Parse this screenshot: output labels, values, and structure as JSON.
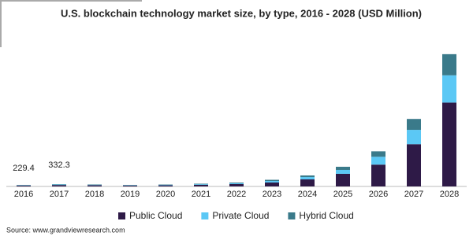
{
  "chart_data": {
    "type": "stacked_bar",
    "title": "U.S. blockchain technology market size, by type, 2016 - 2028 (USD Million)",
    "categories": [
      "2016",
      "2017",
      "2018",
      "2019",
      "2020",
      "2021",
      "2022",
      "2023",
      "2024",
      "2025",
      "2026",
      "2027",
      "2028"
    ],
    "series": [
      {
        "name": "Public Cloud",
        "color": "#2e1a47",
        "values": [
          145,
          210,
          190,
          140,
          170,
          230,
          345,
          575,
          1035,
          1850,
          3200,
          6200,
          12300
        ]
      },
      {
        "name": "Private Cloud",
        "color": "#5bc8f5",
        "values": [
          50,
          70,
          60,
          50,
          60,
          90,
          115,
          230,
          345,
          575,
          1150,
          2100,
          4000
        ]
      },
      {
        "name": "Hybrid Cloud",
        "color": "#3a7a8a",
        "values": [
          34.4,
          52.3,
          50,
          40,
          50,
          80,
          100,
          170,
          230,
          460,
          800,
          1600,
          3100
        ]
      }
    ],
    "annotations": [
      {
        "category": "2016",
        "label": "229.4"
      },
      {
        "category": "2017",
        "label": "332.3"
      }
    ],
    "ylim": [
      0,
      19500
    ],
    "source": "Source: www.grandviewresearch.com"
  }
}
